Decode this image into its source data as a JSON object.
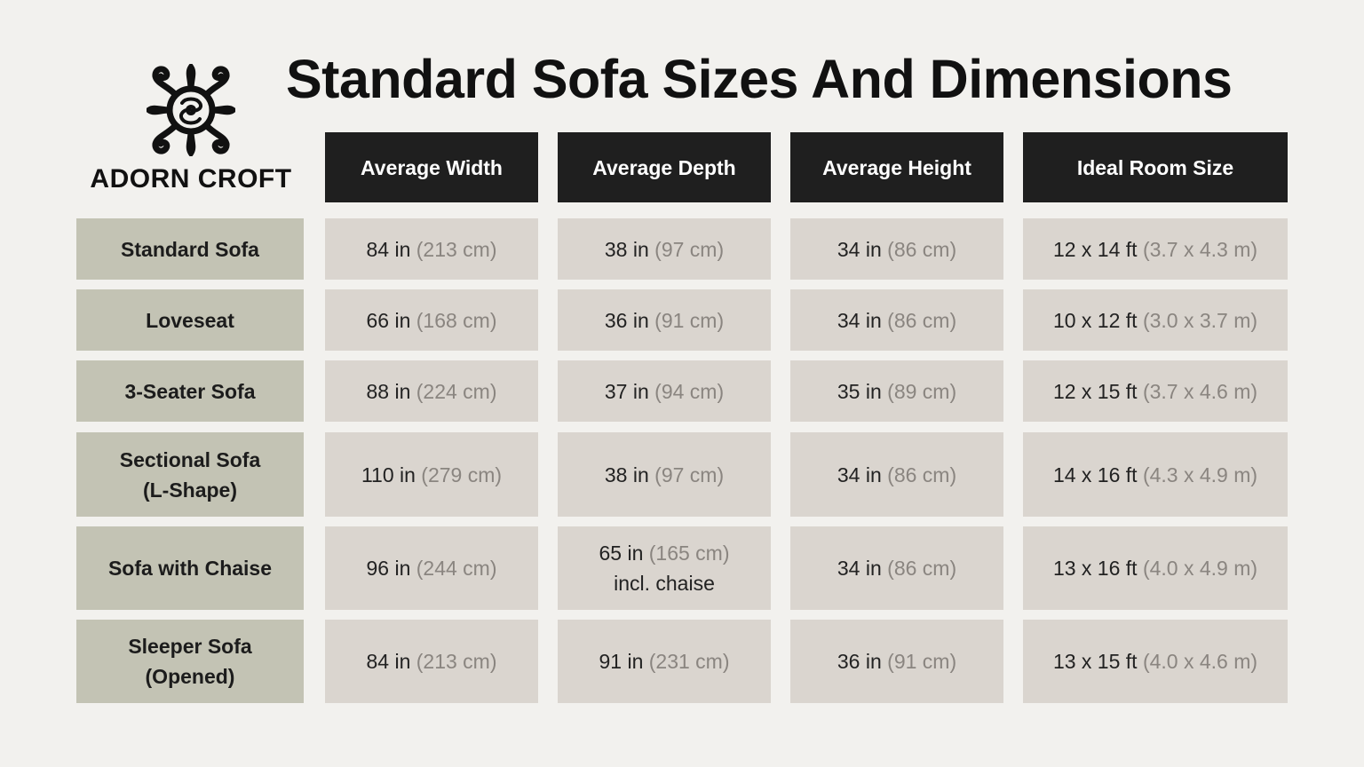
{
  "title": "Standard Sofa Sizes And Dimensions",
  "brand": {
    "name": "ADORN CROFT",
    "logo_icon": "ornamental-knot-icon"
  },
  "colors": {
    "header_bg": "#1f1f1f",
    "label_bg": "#c3c3b4",
    "cell_bg": "#dad5cf",
    "metric_text": "#8a8580"
  },
  "table": {
    "headers": [
      "Average Width",
      "Average Depth",
      "Average Height",
      "Ideal Room Size"
    ],
    "rows": [
      {
        "label": [
          "Standard Sofa"
        ],
        "cells": [
          {
            "main": "84 in",
            "metric": "(213 cm)"
          },
          {
            "main": "38 in",
            "metric": "(97 cm)"
          },
          {
            "main": "34 in",
            "metric": "(86 cm)"
          },
          {
            "main": "12 x 14 ft",
            "metric": "(3.7 x 4.3 m)"
          }
        ]
      },
      {
        "label": [
          "Loveseat"
        ],
        "cells": [
          {
            "main": "66 in",
            "metric": "(168 cm)"
          },
          {
            "main": "36 in",
            "metric": "(91 cm)"
          },
          {
            "main": "34 in",
            "metric": "(86 cm)"
          },
          {
            "main": "10 x 12 ft",
            "metric": "(3.0 x 3.7 m)"
          }
        ]
      },
      {
        "label": [
          "3-Seater Sofa"
        ],
        "cells": [
          {
            "main": "88 in",
            "metric": "(224 cm)"
          },
          {
            "main": "37 in",
            "metric": "(94 cm)"
          },
          {
            "main": "35 in",
            "metric": "(89 cm)"
          },
          {
            "main": "12 x 15 ft",
            "metric": "(3.7 x 4.6 m)"
          }
        ]
      },
      {
        "label": [
          "Sectional Sofa",
          "(L-Shape)"
        ],
        "cells": [
          {
            "main": "110 in",
            "metric": "(279 cm)"
          },
          {
            "main": "38 in",
            "metric": "(97 cm)"
          },
          {
            "main": "34 in",
            "metric": "(86 cm)"
          },
          {
            "main": "14 x 16 ft",
            "metric": "(4.3 x 4.9 m)"
          }
        ]
      },
      {
        "label": [
          "Sofa with Chaise"
        ],
        "cells": [
          {
            "main": "96 in",
            "metric": "(244 cm)"
          },
          {
            "main": "65 in",
            "metric": "(165 cm)",
            "note": "incl. chaise"
          },
          {
            "main": "34 in",
            "metric": "(86 cm)"
          },
          {
            "main": "13 x 16 ft",
            "metric": "(4.0 x 4.9 m)"
          }
        ]
      },
      {
        "label": [
          "Sleeper Sofa",
          "(Opened)"
        ],
        "cells": [
          {
            "main": "84 in",
            "metric": "(213 cm)"
          },
          {
            "main": "91 in",
            "metric": "(231 cm)"
          },
          {
            "main": "36 in",
            "metric": "(91 cm)"
          },
          {
            "main": "13 x 15 ft",
            "metric": "(4.0 x 4.6 m)"
          }
        ]
      }
    ]
  }
}
